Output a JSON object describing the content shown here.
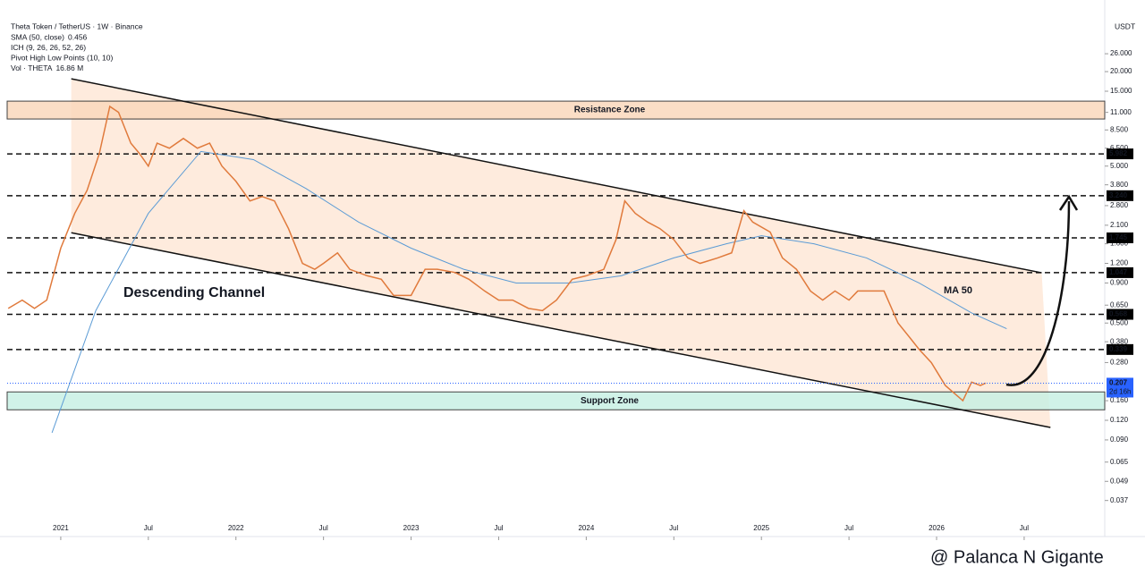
{
  "chart_data": {
    "type": "line",
    "title": "Theta Token / TetherUS · 1W · Binance",
    "indicators": [
      {
        "label": "SMA (50, close)",
        "value": "0.456"
      },
      {
        "label": "ICH (9, 26, 26, 52, 26)"
      },
      {
        "label": "Pivot High Low Points (10, 10)"
      },
      {
        "label": "Vol · THETA",
        "value": "16.86 M"
      }
    ],
    "unit": "USDT",
    "log_scale": true,
    "grid": false,
    "color": "#e07a3c",
    "xlim": [
      2020.694,
      2026.96
    ],
    "ylim": [
      0.0218,
      57.2
    ],
    "xticks": [
      2021,
      {
        "value": 2021.5,
        "label": "Jul"
      },
      2022,
      {
        "value": 2022.5,
        "label": "Jul"
      },
      2023,
      {
        "value": 2023.5,
        "label": "Jul"
      },
      2024,
      {
        "value": 2024.5,
        "label": "Jul"
      },
      2025,
      {
        "value": 2025.5,
        "label": "Jul"
      },
      2026,
      {
        "value": 2026.5,
        "label": "Jul"
      }
    ],
    "yticks": [
      {
        "value": 26,
        "label": "26.000"
      },
      {
        "value": 20,
        "label": "20.000"
      },
      {
        "value": 15,
        "label": "15.000"
      },
      {
        "value": 11,
        "label": "11.000"
      },
      {
        "value": 8.5,
        "label": "8.500"
      },
      {
        "value": 6.5,
        "label": "6.500"
      },
      {
        "value": 5,
        "label": "5.000"
      },
      {
        "value": 3.8,
        "label": "3.800"
      },
      {
        "value": 2.8,
        "label": "2.800"
      },
      {
        "value": 2.1,
        "label": "2.100"
      },
      {
        "value": 1.6,
        "label": "1.600"
      },
      {
        "value": 1.2,
        "label": "1.200"
      },
      {
        "value": 0.9,
        "label": "0.900"
      },
      {
        "value": 0.65,
        "label": "0.650"
      },
      {
        "value": 0.5,
        "label": "0.500"
      },
      {
        "value": 0.38,
        "label": "0.380"
      },
      {
        "value": 0.28,
        "label": "0.280"
      },
      {
        "value": 0.16,
        "label": "0.160"
      },
      {
        "value": 0.12,
        "label": "0.120"
      },
      {
        "value": 0.09,
        "label": "0.090"
      },
      0.065,
      0.049,
      0.037
    ],
    "x": [
      2020.7,
      2020.78,
      2020.85,
      2020.92,
      2021.0,
      2021.08,
      2021.15,
      2021.22,
      2021.28,
      2021.33,
      2021.4,
      2021.45,
      2021.5,
      2021.55,
      2021.62,
      2021.7,
      2021.78,
      2021.85,
      2021.92,
      2022.0,
      2022.08,
      2022.15,
      2022.22,
      2022.3,
      2022.38,
      2022.45,
      2022.5,
      2022.58,
      2022.65,
      2022.75,
      2022.83,
      2022.9,
      2023.0,
      2023.08,
      2023.15,
      2023.25,
      2023.33,
      2023.42,
      2023.5,
      2023.58,
      2023.67,
      2023.75,
      2023.83,
      2023.92,
      2024.0,
      2024.1,
      2024.17,
      2024.22,
      2024.28,
      2024.35,
      2024.42,
      2024.5,
      2024.58,
      2024.65,
      2024.75,
      2024.83,
      2024.9,
      2024.95,
      2025.05,
      2025.12,
      2025.2,
      2025.28,
      2025.35,
      2025.42,
      2025.5,
      2025.55,
      2025.62,
      2025.7,
      2025.78,
      2025.85,
      2025.9,
      2025.97,
      2026.05,
      2026.15,
      2026.2,
      2026.25,
      2026.28
    ],
    "values": [
      0.62,
      0.7,
      0.62,
      0.7,
      1.5,
      2.5,
      3.5,
      6,
      12,
      11,
      7,
      6,
      5,
      7,
      6.5,
      7.5,
      6.5,
      7,
      5,
      4,
      3,
      3.2,
      3,
      2,
      1.2,
      1.1,
      1.2,
      1.4,
      1.1,
      1,
      0.95,
      0.75,
      0.75,
      1.1,
      1.1,
      1.05,
      0.95,
      0.8,
      0.7,
      0.7,
      0.62,
      0.6,
      0.7,
      0.95,
      1,
      1.1,
      1.7,
      3,
      2.5,
      2.2,
      2,
      1.7,
      1.3,
      1.2,
      1.3,
      1.4,
      2.6,
      2.2,
      1.9,
      1.3,
      1.1,
      0.8,
      0.7,
      0.8,
      0.7,
      0.8,
      0.8,
      0.8,
      0.5,
      0.4,
      0.34,
      0.28,
      0.2,
      0.16,
      0.21,
      0.2,
      0.207
    ],
    "ma": {
      "label": "MA 50",
      "color": "#5b9bd5",
      "x": [
        2020.95,
        2021.2,
        2021.5,
        2021.8,
        2022.1,
        2022.4,
        2022.7,
        2023.0,
        2023.3,
        2023.6,
        2023.9,
        2024.2,
        2024.5,
        2024.8,
        2025.0,
        2025.3,
        2025.6,
        2025.9,
        2026.2,
        2026.4
      ],
      "values": [
        0.1,
        0.6,
        2.5,
        6.2,
        5.5,
        3.6,
        2.2,
        1.5,
        1.1,
        0.9,
        0.9,
        1.0,
        1.3,
        1.6,
        1.8,
        1.6,
        1.3,
        0.9,
        0.58,
        0.46
      ]
    },
    "levels": [
      5.982,
      3.24,
      1.745,
      1.047,
      0.568,
      0.339
    ],
    "level_labels": [
      "5.982",
      "3.240",
      "1.745",
      "1.047",
      "0.568",
      "0.339"
    ],
    "current_price": 0.207,
    "countdown": "2d 16h",
    "zones": [
      {
        "label": "Resistance Zone",
        "range": [
          9.98,
          12.97
        ],
        "color": "#fbd9bd"
      },
      {
        "label": "Support Zone",
        "range": [
          0.14,
          0.182
        ],
        "color": "#c8f0e4"
      }
    ],
    "channel": {
      "label": "Descending Channel",
      "upper": {
        "x": [
          2021.06,
          2026.6
        ],
        "values": [
          18,
          1.045
        ]
      },
      "lower": {
        "x": [
          2021.06,
          2026.65
        ],
        "values": [
          1.88,
          0.108
        ]
      }
    },
    "watermark": "@ Palanca N Gigante"
  }
}
